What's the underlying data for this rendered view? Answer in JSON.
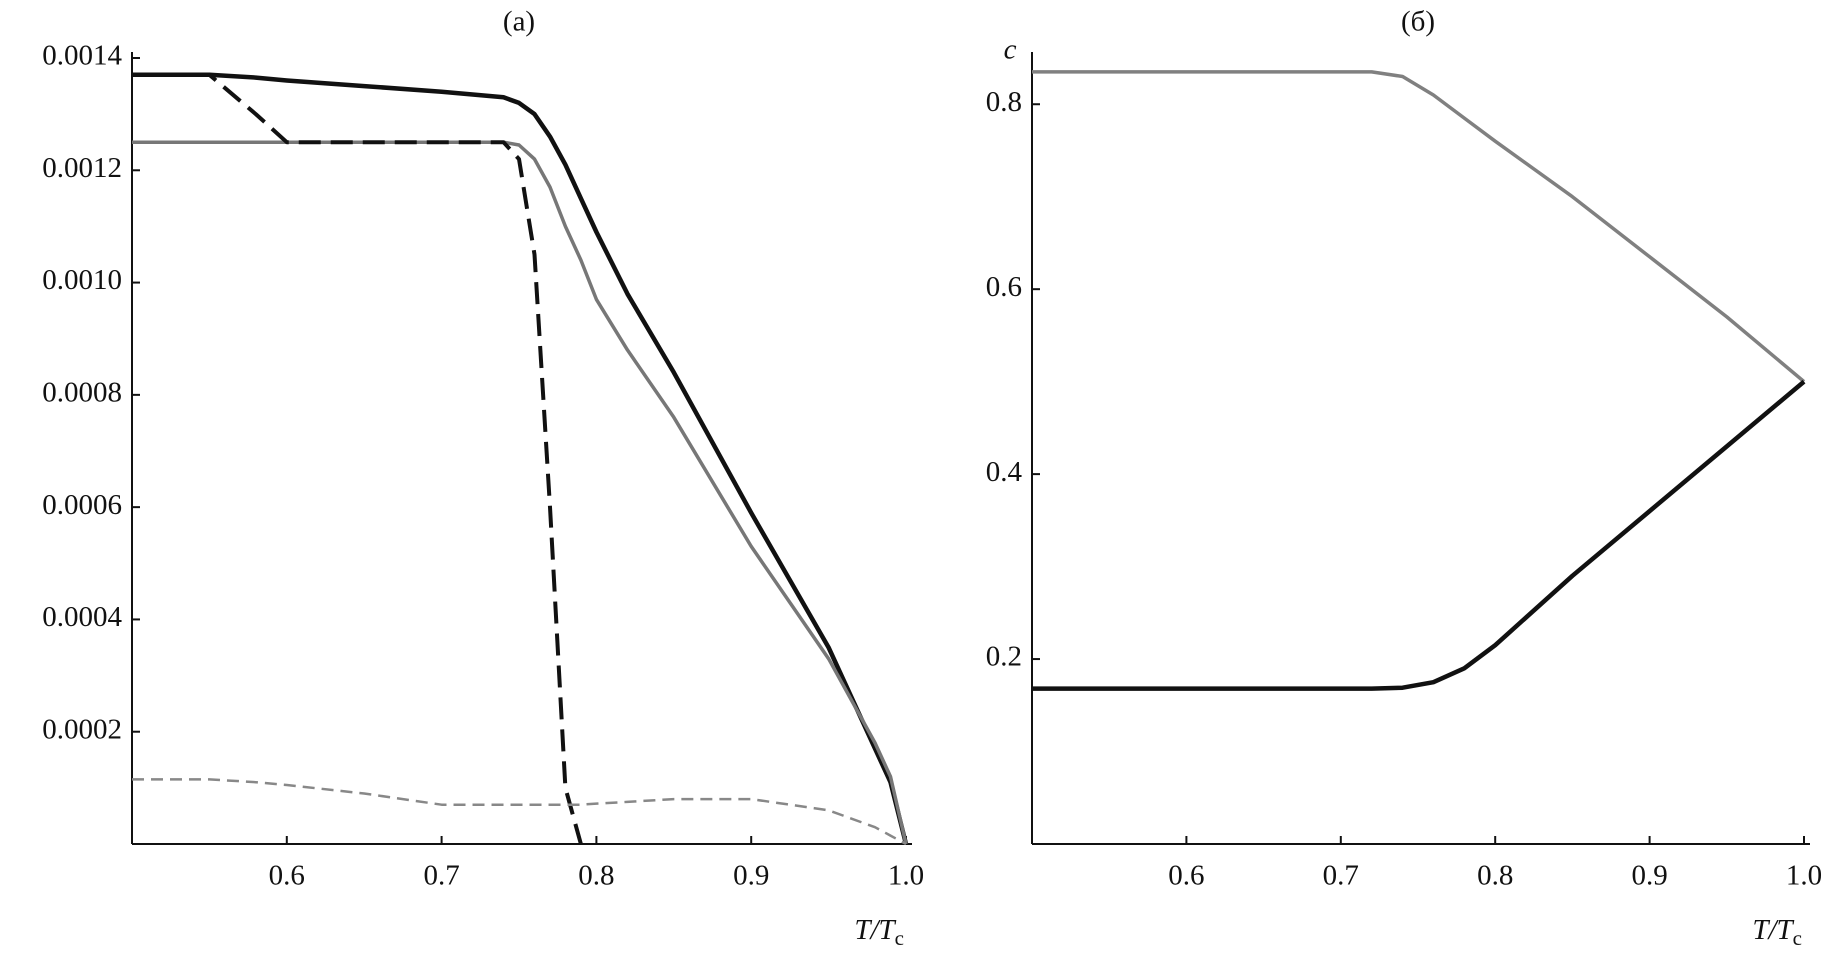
{
  "chart_data": [
    {
      "type": "line",
      "title": "(a)",
      "xlabel": "T/T",
      "xlabel_subscript": "c",
      "x": [
        0.5,
        0.55,
        0.58,
        0.6,
        0.65,
        0.7,
        0.72,
        0.74,
        0.75,
        0.76,
        0.77,
        0.78,
        0.79,
        0.8,
        0.82,
        0.85,
        0.9,
        0.95,
        0.98,
        0.99,
        1.0
      ],
      "series": [
        {
          "color": "#111111",
          "linestyle": "solid",
          "values": [
            0.00137,
            0.00137,
            0.001365,
            0.00136,
            0.00135,
            0.00134,
            0.001335,
            0.00133,
            0.00132,
            0.0013,
            0.00126,
            0.00121,
            0.00115,
            0.00109,
            0.00098,
            0.00084,
            0.00059,
            0.00035,
            0.00017,
            0.00011,
            0
          ]
        },
        {
          "color": "#777777",
          "linestyle": "solid",
          "values": [
            0.00125,
            0.00125,
            0.00125,
            0.00125,
            0.00125,
            0.00125,
            0.00125,
            0.00125,
            0.001245,
            0.00122,
            0.00117,
            0.0011,
            0.00104,
            0.00097,
            0.00088,
            0.00076,
            0.00053,
            0.00033,
            0.00018,
            0.00012,
            0
          ]
        },
        {
          "color": "#111111",
          "linestyle": "dashed",
          "values": [
            0.00137,
            0.00137,
            0.0013,
            0.00125,
            0.00125,
            0.00125,
            0.00125,
            0.00125,
            0.00122,
            0.00105,
            0.0006,
            0.0001,
            0,
            null,
            null,
            null,
            null,
            null,
            null,
            null,
            null
          ]
        },
        {
          "color": "#888888",
          "linestyle": "dashed",
          "values": [
            0.000115,
            0.000115,
            0.00011,
            0.000105,
            9e-05,
            7e-05,
            7e-05,
            7e-05,
            7e-05,
            7e-05,
            7e-05,
            7e-05,
            7e-05,
            7.2e-05,
            7.5e-05,
            8e-05,
            8e-05,
            6e-05,
            3e-05,
            1.5e-05,
            0
          ]
        }
      ],
      "xlim": [
        0.5,
        1.0
      ],
      "xticks": [
        0.6,
        0.7,
        0.8,
        0.9,
        {
          "value": 1,
          "label": "1.0"
        }
      ],
      "ylim": [
        0,
        0.0014
      ],
      "yticks": [
        0.0002,
        0.0004,
        0.0006,
        0.0008,
        {
          "value": 0.001,
          "label": "0.0010"
        },
        0.0012,
        0.0014
      ]
    },
    {
      "type": "line",
      "title": "(б)",
      "ylabel": "c",
      "xlabel": "T/T",
      "xlabel_subscript": "c",
      "x": [
        0.5,
        0.6,
        0.7,
        0.72,
        0.74,
        0.76,
        0.78,
        0.8,
        0.85,
        0.9,
        0.95,
        1.0
      ],
      "series": [
        {
          "color": "#808080",
          "linestyle": "solid",
          "values": [
            0.835,
            0.835,
            0.835,
            0.835,
            0.83,
            0.81,
            0.785,
            0.76,
            0.7,
            0.635,
            0.57,
            0.5
          ]
        },
        {
          "color": "#111111",
          "linestyle": "solid",
          "values": [
            0.168,
            0.168,
            0.168,
            0.168,
            0.169,
            0.175,
            0.19,
            0.215,
            0.29,
            0.36,
            0.43,
            0.5
          ]
        }
      ],
      "xlim": [
        0.5,
        1.0
      ],
      "xticks": [
        0.6,
        0.7,
        0.8,
        0.9,
        {
          "value": 1,
          "label": "1.0"
        }
      ],
      "ylim": [
        0,
        0.85
      ],
      "yticks": [
        0.2,
        0.4,
        0.6,
        0.8
      ]
    }
  ]
}
